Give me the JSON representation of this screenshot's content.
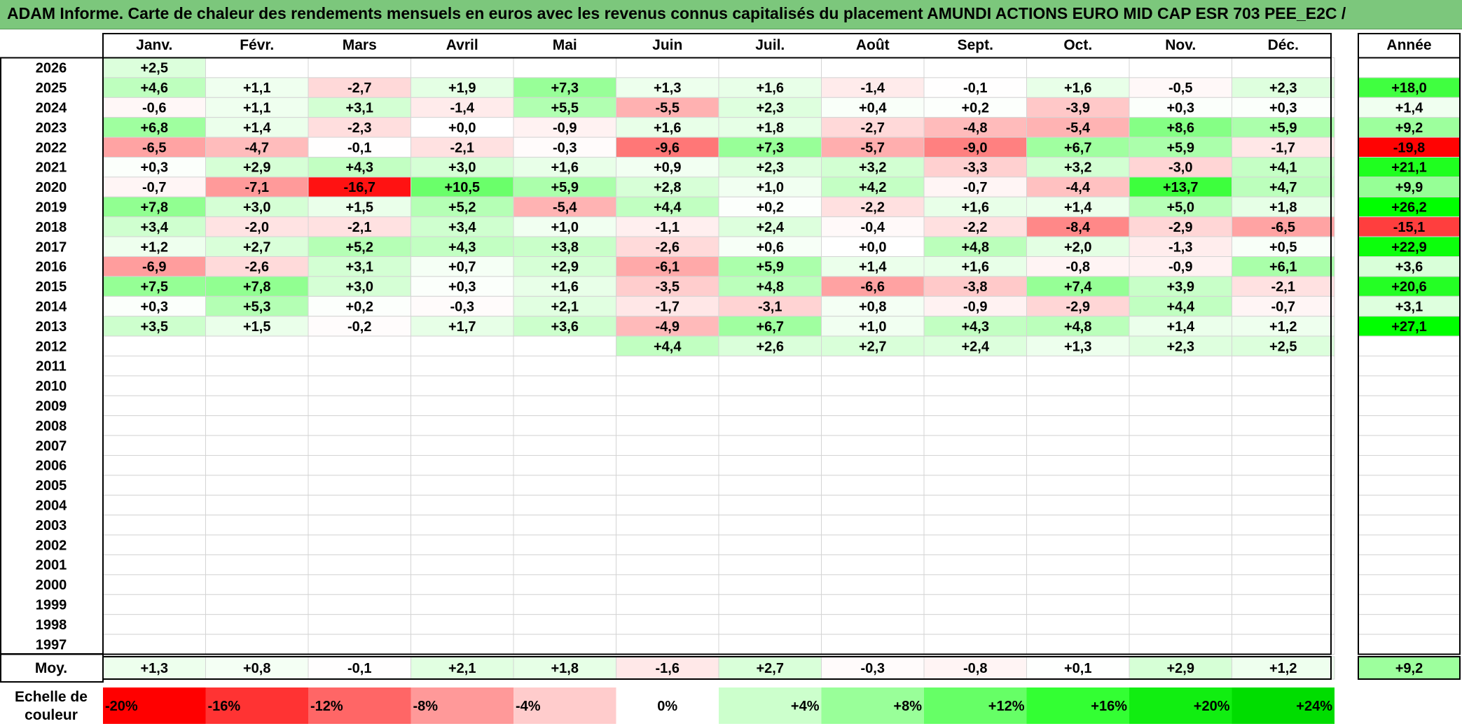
{
  "title": "ADAM Informe. Carte de chaleur des rendements mensuels en euros avec les revenus connus capitalisés du placement AMUNDI ACTIONS EURO MID CAP ESR 703 PEE_E2C /",
  "chart_data": {
    "type": "heatmap",
    "title": "ADAM Informe. Carte de chaleur des rendements mensuels en euros avec les revenus connus capitalisés du placement AMUNDI ACTIONS EURO MID CAP ESR 703 PEE_E2C /",
    "months": [
      "Janv.",
      "Févr.",
      "Mars",
      "Avril",
      "Mai",
      "Juin",
      "Juil.",
      "Août",
      "Sept.",
      "Oct.",
      "Nov.",
      "Déc."
    ],
    "year_header": "Année",
    "rows": [
      {
        "year": "2026",
        "values": [
          "+2,5",
          null,
          null,
          null,
          null,
          null,
          null,
          null,
          null,
          null,
          null,
          null
        ],
        "annual": null
      },
      {
        "year": "2025",
        "values": [
          "+4,6",
          "+1,1",
          "-2,7",
          "+1,9",
          "+7,3",
          "+1,3",
          "+1,6",
          "-1,4",
          "-0,1",
          "+1,6",
          "-0,5",
          "+2,3"
        ],
        "annual": "+18,0"
      },
      {
        "year": "2024",
        "values": [
          "-0,6",
          "+1,1",
          "+3,1",
          "-1,4",
          "+5,5",
          "-5,5",
          "+2,3",
          "+0,4",
          "+0,2",
          "-3,9",
          "+0,3",
          "+0,3"
        ],
        "annual": "+1,4"
      },
      {
        "year": "2023",
        "values": [
          "+6,8",
          "+1,4",
          "-2,3",
          "+0,0",
          "-0,9",
          "+1,6",
          "+1,8",
          "-2,7",
          "-4,8",
          "-5,4",
          "+8,6",
          "+5,9"
        ],
        "annual": "+9,2"
      },
      {
        "year": "2022",
        "values": [
          "-6,5",
          "-4,7",
          "-0,1",
          "-2,1",
          "-0,3",
          "-9,6",
          "+7,3",
          "-5,7",
          "-9,0",
          "+6,7",
          "+5,9",
          "-1,7"
        ],
        "annual": "-19,8"
      },
      {
        "year": "2021",
        "values": [
          "+0,3",
          "+2,9",
          "+4,3",
          "+3,0",
          "+1,6",
          "+0,9",
          "+2,3",
          "+3,2",
          "-3,3",
          "+3,2",
          "-3,0",
          "+4,1"
        ],
        "annual": "+21,1"
      },
      {
        "year": "2020",
        "values": [
          "-0,7",
          "-7,1",
          "-16,7",
          "+10,5",
          "+5,9",
          "+2,8",
          "+1,0",
          "+4,2",
          "-0,7",
          "-4,4",
          "+13,7",
          "+4,7"
        ],
        "annual": "+9,9"
      },
      {
        "year": "2019",
        "values": [
          "+7,8",
          "+3,0",
          "+1,5",
          "+5,2",
          "-5,4",
          "+4,4",
          "+0,2",
          "-2,2",
          "+1,6",
          "+1,4",
          "+5,0",
          "+1,8"
        ],
        "annual": "+26,2"
      },
      {
        "year": "2018",
        "values": [
          "+3,4",
          "-2,0",
          "-2,1",
          "+3,4",
          "+1,0",
          "-1,1",
          "+2,4",
          "-0,4",
          "-2,2",
          "-8,4",
          "-2,9",
          "-6,5"
        ],
        "annual": "-15,1"
      },
      {
        "year": "2017",
        "values": [
          "+1,2",
          "+2,7",
          "+5,2",
          "+4,3",
          "+3,8",
          "-2,6",
          "+0,6",
          "+0,0",
          "+4,8",
          "+2,0",
          "-1,3",
          "+0,5"
        ],
        "annual": "+22,9"
      },
      {
        "year": "2016",
        "values": [
          "-6,9",
          "-2,6",
          "+3,1",
          "+0,7",
          "+2,9",
          "-6,1",
          "+5,9",
          "+1,4",
          "+1,6",
          "-0,8",
          "-0,9",
          "+6,1"
        ],
        "annual": "+3,6"
      },
      {
        "year": "2015",
        "values": [
          "+7,5",
          "+7,8",
          "+3,0",
          "+0,3",
          "+1,6",
          "-3,5",
          "+4,8",
          "-6,6",
          "-3,8",
          "+7,4",
          "+3,9",
          "-2,1"
        ],
        "annual": "+20,6"
      },
      {
        "year": "2014",
        "values": [
          "+0,3",
          "+5,3",
          "+0,2",
          "-0,3",
          "+2,1",
          "-1,7",
          "-3,1",
          "+0,8",
          "-0,9",
          "-2,9",
          "+4,4",
          "-0,7"
        ],
        "annual": "+3,1"
      },
      {
        "year": "2013",
        "values": [
          "+3,5",
          "+1,5",
          "-0,2",
          "+1,7",
          "+3,6",
          "-4,9",
          "+6,7",
          "+1,0",
          "+4,3",
          "+4,8",
          "+1,4",
          "+1,2"
        ],
        "annual": "+27,1"
      },
      {
        "year": "2012",
        "values": [
          null,
          null,
          null,
          null,
          null,
          "+4,4",
          "+2,6",
          "+2,7",
          "+2,4",
          "+1,3",
          "+2,3",
          "+2,5"
        ],
        "annual": null
      },
      {
        "year": "2011",
        "values": [
          null,
          null,
          null,
          null,
          null,
          null,
          null,
          null,
          null,
          null,
          null,
          null
        ],
        "annual": null
      },
      {
        "year": "2010",
        "values": [
          null,
          null,
          null,
          null,
          null,
          null,
          null,
          null,
          null,
          null,
          null,
          null
        ],
        "annual": null
      },
      {
        "year": "2009",
        "values": [
          null,
          null,
          null,
          null,
          null,
          null,
          null,
          null,
          null,
          null,
          null,
          null
        ],
        "annual": null
      },
      {
        "year": "2008",
        "values": [
          null,
          null,
          null,
          null,
          null,
          null,
          null,
          null,
          null,
          null,
          null,
          null
        ],
        "annual": null
      },
      {
        "year": "2007",
        "values": [
          null,
          null,
          null,
          null,
          null,
          null,
          null,
          null,
          null,
          null,
          null,
          null
        ],
        "annual": null
      },
      {
        "year": "2006",
        "values": [
          null,
          null,
          null,
          null,
          null,
          null,
          null,
          null,
          null,
          null,
          null,
          null
        ],
        "annual": null
      },
      {
        "year": "2005",
        "values": [
          null,
          null,
          null,
          null,
          null,
          null,
          null,
          null,
          null,
          null,
          null,
          null
        ],
        "annual": null
      },
      {
        "year": "2004",
        "values": [
          null,
          null,
          null,
          null,
          null,
          null,
          null,
          null,
          null,
          null,
          null,
          null
        ],
        "annual": null
      },
      {
        "year": "2003",
        "values": [
          null,
          null,
          null,
          null,
          null,
          null,
          null,
          null,
          null,
          null,
          null,
          null
        ],
        "annual": null
      },
      {
        "year": "2002",
        "values": [
          null,
          null,
          null,
          null,
          null,
          null,
          null,
          null,
          null,
          null,
          null,
          null
        ],
        "annual": null
      },
      {
        "year": "2001",
        "values": [
          null,
          null,
          null,
          null,
          null,
          null,
          null,
          null,
          null,
          null,
          null,
          null
        ],
        "annual": null
      },
      {
        "year": "2000",
        "values": [
          null,
          null,
          null,
          null,
          null,
          null,
          null,
          null,
          null,
          null,
          null,
          null
        ],
        "annual": null
      },
      {
        "year": "1999",
        "values": [
          null,
          null,
          null,
          null,
          null,
          null,
          null,
          null,
          null,
          null,
          null,
          null
        ],
        "annual": null
      },
      {
        "year": "1998",
        "values": [
          null,
          null,
          null,
          null,
          null,
          null,
          null,
          null,
          null,
          null,
          null,
          null
        ],
        "annual": null
      },
      {
        "year": "1997",
        "values": [
          null,
          null,
          null,
          null,
          null,
          null,
          null,
          null,
          null,
          null,
          null,
          null
        ],
        "annual": null
      }
    ],
    "average": {
      "label": "Moy.",
      "values": [
        "+1,3",
        "+0,8",
        "-0,1",
        "+2,1",
        "+1,8",
        "-1,6",
        "+2,7",
        "-0,3",
        "-0,8",
        "+0,1",
        "+2,9",
        "+1,2"
      ],
      "annual": "+9,2"
    },
    "scale": {
      "label_line1": "Echelle de",
      "label_line2": "couleur",
      "stops": [
        {
          "label": "-20%",
          "value": -20,
          "color": "#ff0000"
        },
        {
          "label": "-16%",
          "value": -16,
          "color": "#ff3333"
        },
        {
          "label": "-12%",
          "value": -12,
          "color": "#ff6666"
        },
        {
          "label": "-8%",
          "value": -8,
          "color": "#ff9999"
        },
        {
          "label": "-4%",
          "value": -4,
          "color": "#ffcccc"
        },
        {
          "label": "0%",
          "value": 0,
          "color": "#ffffff"
        },
        {
          "label": "+4%",
          "value": 4,
          "color": "#ccffcc"
        },
        {
          "label": "+8%",
          "value": 8,
          "color": "#99ff99"
        },
        {
          "label": "+12%",
          "value": 12,
          "color": "#66ff66"
        },
        {
          "label": "+16%",
          "value": 16,
          "color": "#33ff33"
        },
        {
          "label": "+20%",
          "value": 20,
          "color": "#11ee11"
        },
        {
          "label": "+24%",
          "value": 24,
          "color": "#00dd00"
        }
      ]
    },
    "colors": {
      "negative": "#ff0000",
      "positive": "#00dd00",
      "title_bar": "#7cc77c"
    }
  }
}
